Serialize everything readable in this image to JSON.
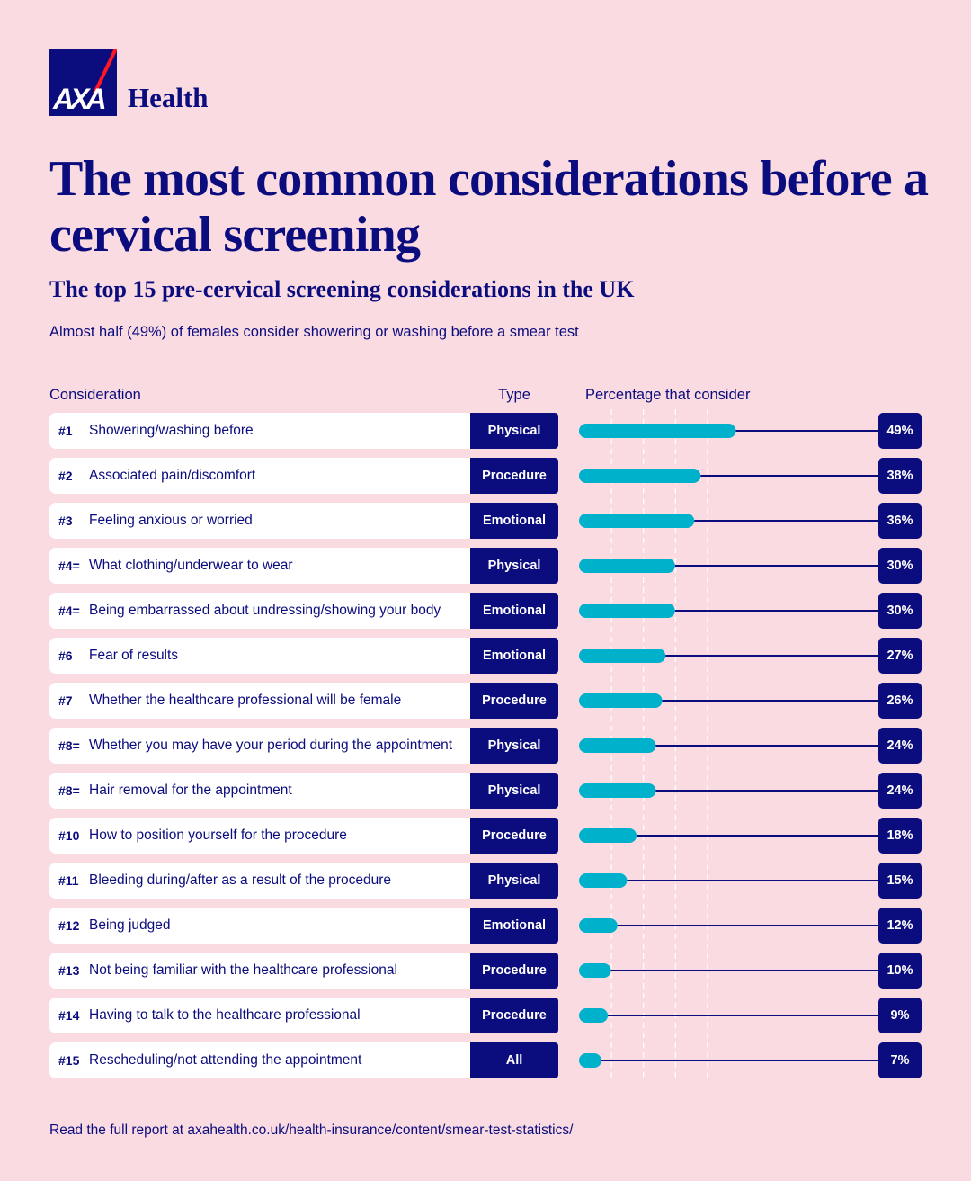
{
  "brand": {
    "logo_text": "AXA",
    "name": "Health"
  },
  "title": "The most common considerations before a cervical screening",
  "subtitle": "The top 15 pre-cervical screening considerations in the UK",
  "intro": "Almost half (49%) of females consider showering or washing before a smear test",
  "columns": {
    "consideration": "Consideration",
    "type": "Type",
    "percentage": "Percentage that consider"
  },
  "rows": [
    {
      "rank": "#1",
      "label": "Showering/washing before",
      "type": "Physical",
      "pct_text": "49%"
    },
    {
      "rank": "#2",
      "label": "Associated pain/discomfort",
      "type": "Procedure",
      "pct_text": "38%"
    },
    {
      "rank": "#3",
      "label": "Feeling anxious or worried",
      "type": "Emotional",
      "pct_text": "36%"
    },
    {
      "rank": "#4=",
      "label": "What clothing/underwear to wear",
      "type": "Physical",
      "pct_text": "30%"
    },
    {
      "rank": "#4=",
      "label": "Being embarrassed about undressing/showing your body",
      "type": "Emotional",
      "pct_text": "30%"
    },
    {
      "rank": "#6",
      "label": "Fear of results",
      "type": "Emotional",
      "pct_text": "27%"
    },
    {
      "rank": "#7",
      "label": "Whether the healthcare professional will be female",
      "type": "Procedure",
      "pct_text": "26%"
    },
    {
      "rank": "#8=",
      "label": "Whether you may have your period during the appointment",
      "type": "Physical",
      "pct_text": "24%"
    },
    {
      "rank": "#8=",
      "label": "Hair removal for the appointment",
      "type": "Physical",
      "pct_text": "24%"
    },
    {
      "rank": "#10",
      "label": "How to position yourself for the procedure",
      "type": "Procedure",
      "pct_text": "18%"
    },
    {
      "rank": "#11",
      "label": "Bleeding during/after as a result of the procedure",
      "type": "Physical",
      "pct_text": "15%"
    },
    {
      "rank": "#12",
      "label": "Being judged",
      "type": "Emotional",
      "pct_text": "12%"
    },
    {
      "rank": "#13",
      "label": "Not being familiar with the healthcare professional",
      "type": "Procedure",
      "pct_text": "10%"
    },
    {
      "rank": "#14",
      "label": "Having to talk to the healthcare professional",
      "type": "Procedure",
      "pct_text": "9%"
    },
    {
      "rank": "#15",
      "label": "Rescheduling/not attending the appointment",
      "type": "All",
      "pct_text": "7%"
    }
  ],
  "chart_data": {
    "type": "bar",
    "orientation": "horizontal",
    "title": "The top 15 pre-cervical screening considerations in the UK",
    "xlabel": "Percentage that consider",
    "ylabel": "Consideration",
    "xlim": [
      0,
      100
    ],
    "grid": true,
    "categories": [
      "Showering/washing before",
      "Associated pain/discomfort",
      "Feeling anxious or worried",
      "What clothing/underwear to wear",
      "Being embarrassed about undressing/showing your body",
      "Fear of results",
      "Whether the healthcare professional will be female",
      "Whether you may have your period during the appointment",
      "Hair removal for the appointment",
      "How to position yourself for the procedure",
      "Bleeding during/after as a result of the procedure",
      "Being judged",
      "Not being familiar with the healthcare professional",
      "Having to talk to the healthcare professional",
      "Rescheduling/not attending the appointment"
    ],
    "values": [
      49,
      38,
      36,
      30,
      30,
      27,
      26,
      24,
      24,
      18,
      15,
      12,
      10,
      9,
      7
    ]
  },
  "colors": {
    "background": "#fadbe2",
    "navy": "#0b0c7d",
    "bar": "#00b1cb",
    "logo_slash": "#ff1721",
    "card": "#ffffff"
  },
  "footer": "Read the full report at axahealth.co.uk/health-insurance/content/smear-test-statistics/"
}
